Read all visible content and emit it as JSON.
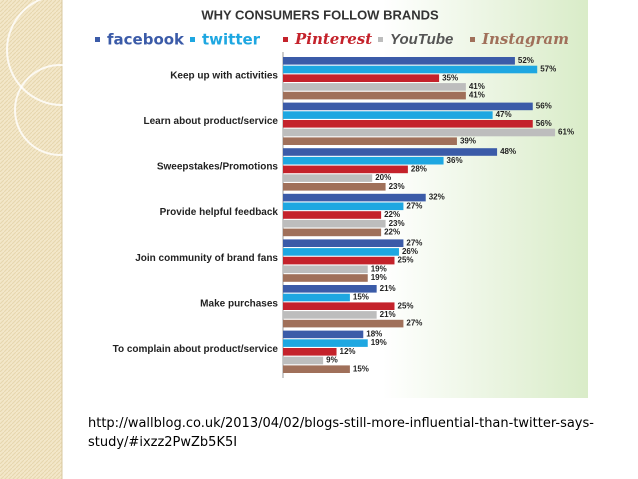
{
  "chart_data": {
    "type": "bar",
    "orientation": "horizontal",
    "title": "WHY CONSUMERS FOLLOW BRANDS",
    "categories": [
      "Keep up with activities",
      "Learn about product/service",
      "Sweepstakes/Promotions",
      "Provide helpful feedback",
      "Join community of brand fans",
      "Make purchases",
      "To complain about product/service"
    ],
    "series": [
      {
        "name": "facebook",
        "color": "#3b5ba8",
        "values": [
          52,
          56,
          48,
          32,
          27,
          21,
          18
        ],
        "value_labels": [
          "52%",
          "56%",
          "48%",
          "32%",
          "27%",
          "21%",
          "18%"
        ]
      },
      {
        "name": "twitter",
        "color": "#1ea7e1",
        "values": [
          57,
          47,
          36,
          27,
          26,
          15,
          19
        ],
        "value_labels": [
          "57%",
          "47%",
          "36%",
          "27%",
          "26%",
          "15%",
          "19%"
        ]
      },
      {
        "name": "Pinterest",
        "color": "#c4222b",
        "values": [
          35,
          56,
          28,
          22,
          25,
          25,
          12
        ],
        "value_labels": [
          "35%",
          "56%",
          "28%",
          "22%",
          "25%",
          "25%",
          "12%"
        ]
      },
      {
        "name": "YouTube",
        "color": "#bdbdbd",
        "values": [
          41,
          61,
          20,
          23,
          19,
          21,
          9
        ],
        "value_labels": [
          "41%",
          "61%",
          "20%",
          "23%",
          "19%",
          "21%",
          "9%"
        ]
      },
      {
        "name": "Instagram",
        "color": "#a0705a",
        "values": [
          41,
          39,
          23,
          22,
          19,
          27,
          15
        ],
        "value_labels": [
          "41%",
          "39%",
          "23%",
          "22%",
          "19%",
          "27%",
          "15%"
        ]
      }
    ]
  },
  "footer": {
    "url": "http://wallblog.co.uk/2013/04/02/blogs-still-more-influential-than-twitter-says-study/#ixzz2PwZb5K5I"
  }
}
